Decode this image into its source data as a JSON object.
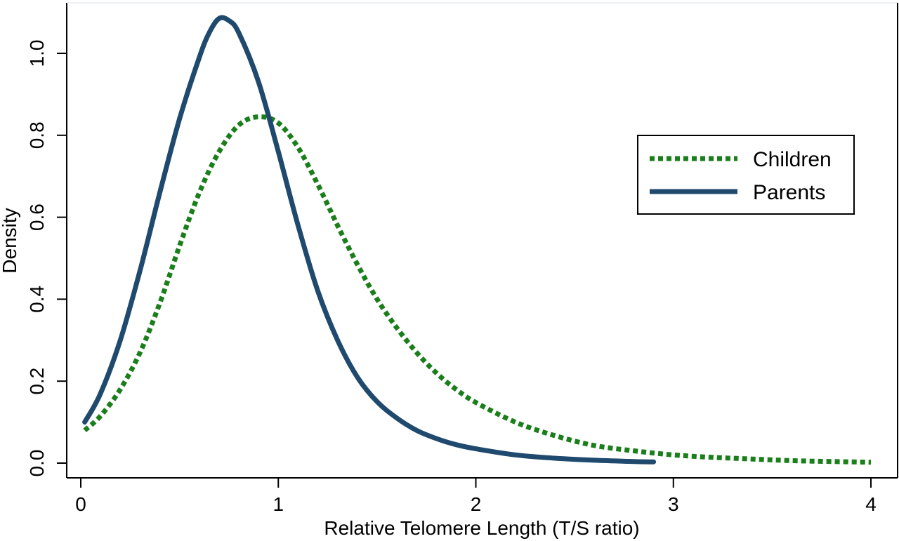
{
  "chart_data": {
    "type": "line",
    "title": "",
    "xlabel": "Relative Telomere Length (T/S ratio)",
    "ylabel": "Density",
    "xlim": [
      0,
      4.1
    ],
    "ylim": [
      -0.04,
      1.12
    ],
    "x_ticks": [
      {
        "value": 0,
        "label": "0"
      },
      {
        "value": 1,
        "label": "1"
      },
      {
        "value": 2,
        "label": "2"
      },
      {
        "value": 3,
        "label": "3"
      },
      {
        "value": 4,
        "label": "4"
      }
    ],
    "y_ticks": [
      {
        "value": 0.0,
        "label": "0.0"
      },
      {
        "value": 0.2,
        "label": "0.2"
      },
      {
        "value": 0.4,
        "label": "0.4"
      },
      {
        "value": 0.6,
        "label": "0.6"
      },
      {
        "value": 0.8,
        "label": "0.8"
      },
      {
        "value": 1.0,
        "label": "1.0"
      }
    ],
    "grid": false,
    "legend_position": "right",
    "series": [
      {
        "name": "Children",
        "style": "dotted",
        "color": "#1a7f1a",
        "x": [
          0.02,
          0.1,
          0.2,
          0.3,
          0.4,
          0.5,
          0.6,
          0.7,
          0.8,
          0.9,
          1.0,
          1.1,
          1.2,
          1.3,
          1.4,
          1.5,
          1.6,
          1.7,
          1.8,
          1.9,
          2.0,
          2.2,
          2.4,
          2.6,
          2.8,
          3.0,
          3.2,
          3.4,
          3.6,
          3.8,
          4.0
        ],
        "y": [
          0.08,
          0.115,
          0.18,
          0.27,
          0.39,
          0.53,
          0.66,
          0.76,
          0.825,
          0.845,
          0.83,
          0.77,
          0.68,
          0.58,
          0.485,
          0.4,
          0.33,
          0.27,
          0.22,
          0.18,
          0.148,
          0.1,
          0.067,
          0.043,
          0.03,
          0.02,
          0.014,
          0.01,
          0.006,
          0.004,
          0.002
        ]
      },
      {
        "name": "Parents",
        "style": "solid",
        "color": "#1f4a6e",
        "x": [
          0.02,
          0.1,
          0.2,
          0.3,
          0.4,
          0.5,
          0.6,
          0.65,
          0.7,
          0.75,
          0.8,
          0.9,
          1.0,
          1.1,
          1.2,
          1.3,
          1.4,
          1.5,
          1.6,
          1.7,
          1.8,
          1.9,
          2.0,
          2.2,
          2.4,
          2.6,
          2.8,
          2.9
        ],
        "y": [
          0.1,
          0.17,
          0.3,
          0.47,
          0.66,
          0.84,
          0.99,
          1.05,
          1.085,
          1.08,
          1.05,
          0.93,
          0.76,
          0.58,
          0.42,
          0.3,
          0.21,
          0.15,
          0.11,
          0.08,
          0.06,
          0.045,
          0.035,
          0.02,
          0.012,
          0.007,
          0.004,
          0.003
        ]
      }
    ]
  }
}
